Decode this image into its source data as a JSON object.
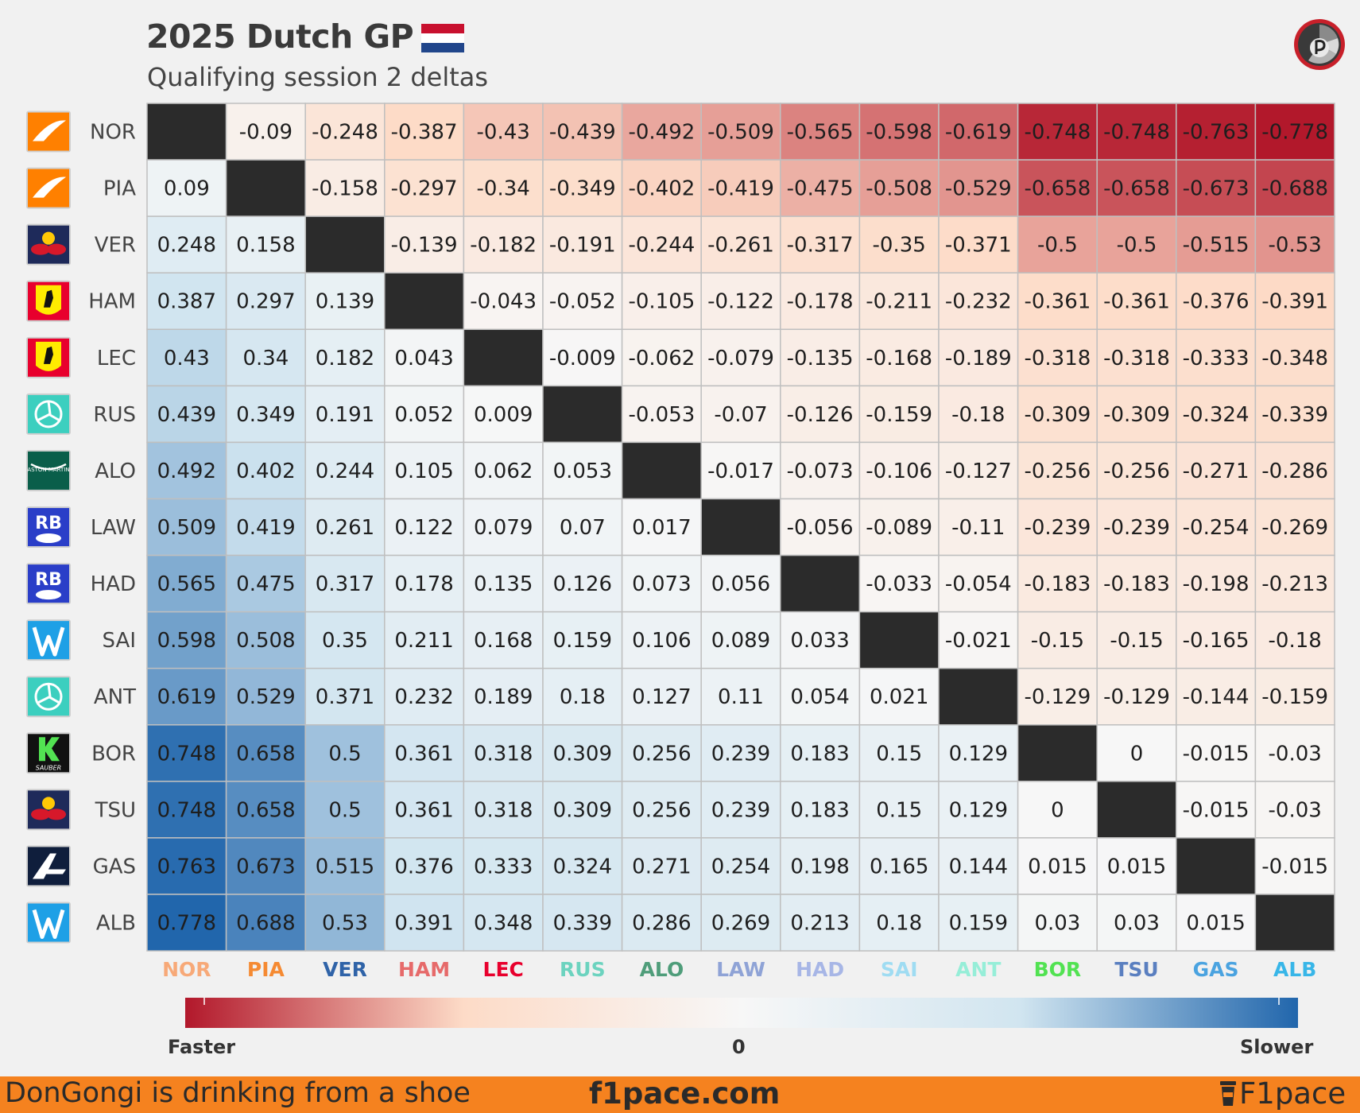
{
  "title": "2025 Dutch GP",
  "subtitle": "Qualifying session 2 deltas",
  "brand_logo_icon": "f1pace-logo-icon",
  "flag_icon": "netherlands-flag-icon",
  "colorbar": {
    "left_label": "Faster",
    "center_label": "0",
    "right_label": "Slower"
  },
  "footer": {
    "left_text": "DonGongi is drinking from a shoe",
    "center_text": "f1pace.com",
    "right_text": "F1pace",
    "right_icon": "coffee-cup-icon"
  },
  "chart_data": {
    "type": "heatmap",
    "title": "2025 Dutch GP",
    "subtitle": "Qualifying session 2 deltas",
    "drivers": [
      "NOR",
      "PIA",
      "VER",
      "HAM",
      "LEC",
      "RUS",
      "ALO",
      "LAW",
      "HAD",
      "SAI",
      "ANT",
      "BOR",
      "TSU",
      "GAS",
      "ALB"
    ],
    "label_colors": [
      "#f7a978",
      "#f58a32",
      "#2f63a8",
      "#e66a6a",
      "#e8002d",
      "#6cd3bf",
      "#4f9d7a",
      "#8fa3d6",
      "#a7b6e6",
      "#9fdcf2",
      "#96eed8",
      "#52e252",
      "#5a7fc0",
      "#4aa3e0",
      "#38b6e8"
    ],
    "team_icons": [
      "mclaren-icon",
      "mclaren-icon",
      "red-bull-icon",
      "ferrari-icon",
      "ferrari-icon",
      "mercedes-icon",
      "aston-martin-icon",
      "racing-bulls-icon",
      "racing-bulls-icon",
      "williams-icon",
      "mercedes-icon",
      "sauber-icon",
      "red-bull-icon",
      "alpine-icon",
      "williams-icon"
    ],
    "team_icon_texts": [
      "",
      "",
      "",
      "",
      "",
      "",
      "ASTON MARTIN",
      "",
      "",
      "",
      "",
      "SAUBER",
      "",
      "",
      ""
    ],
    "base_times": [
      0,
      0.09,
      0.248,
      0.387,
      0.43,
      0.439,
      0.492,
      0.509,
      0.565,
      0.598,
      0.619,
      0.748,
      0.748,
      0.763,
      0.778
    ],
    "value_rule": "cell(row r, col c) = base_times[r] - base_times[c]",
    "color_range": [
      -0.778,
      0.778
    ],
    "diagonal": "blank"
  }
}
